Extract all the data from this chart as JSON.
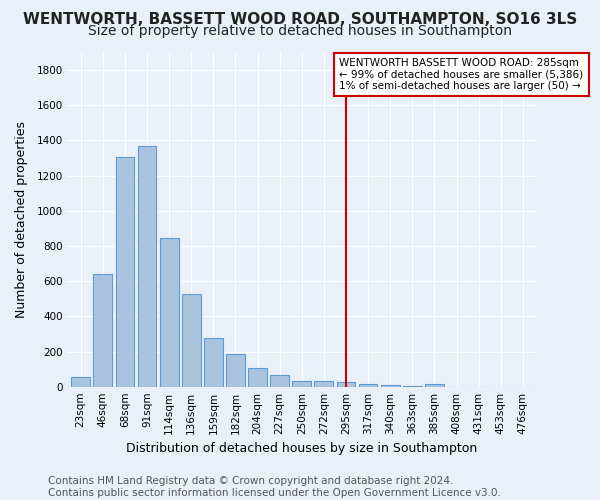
{
  "title": "WENTWORTH, BASSETT WOOD ROAD, SOUTHAMPTON, SO16 3LS",
  "subtitle": "Size of property relative to detached houses in Southampton",
  "xlabel": "Distribution of detached houses by size in Southampton",
  "ylabel": "Number of detached properties",
  "footer": "Contains HM Land Registry data © Crown copyright and database right 2024.\nContains public sector information licensed under the Open Government Licence v3.0.",
  "bar_labels": [
    "23sqm",
    "46sqm",
    "68sqm",
    "91sqm",
    "114sqm",
    "136sqm",
    "159sqm",
    "182sqm",
    "204sqm",
    "227sqm",
    "250sqm",
    "272sqm",
    "295sqm",
    "317sqm",
    "340sqm",
    "363sqm",
    "385sqm",
    "408sqm",
    "431sqm",
    "453sqm",
    "476sqm"
  ],
  "bar_values": [
    55,
    640,
    1305,
    1370,
    845,
    525,
    275,
    185,
    108,
    68,
    35,
    32,
    25,
    15,
    10,
    5,
    18,
    0,
    0,
    0,
    0
  ],
  "bar_color": "#aac4e0",
  "bar_edge_color": "#5b9bd5",
  "background_color": "#eaf0f8",
  "grid_color": "#ffffff",
  "ylim": [
    0,
    1900
  ],
  "yticks": [
    0,
    200,
    400,
    600,
    800,
    1000,
    1200,
    1400,
    1600,
    1800
  ],
  "vline_x_index": 12,
  "vline_color": "#cc0000",
  "annotation_title": "WENTWORTH BASSETT WOOD ROAD: 285sqm",
  "annotation_line1": "← 99% of detached houses are smaller (5,386)",
  "annotation_line2": "1% of semi-detached houses are larger (50) →",
  "annotation_box_color": "#ffffff",
  "annotation_border_color": "#cc0000",
  "title_fontsize": 11,
  "subtitle_fontsize": 10,
  "xlabel_fontsize": 9,
  "ylabel_fontsize": 9,
  "footer_fontsize": 7.5,
  "tick_fontsize": 7.5
}
